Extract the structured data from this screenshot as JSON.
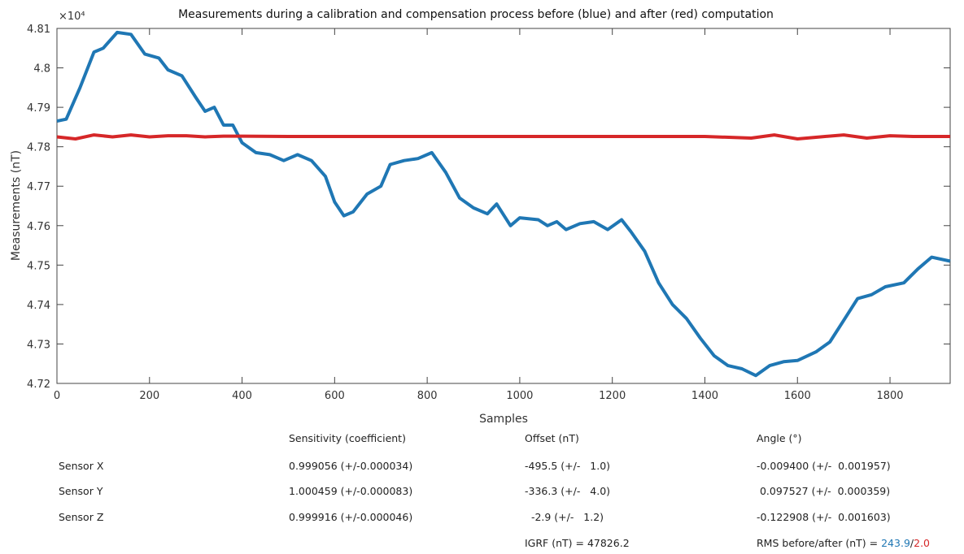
{
  "chart_data": {
    "type": "line",
    "title": "Measurements during a calibration and compensation process before (blue) and after (red) computation",
    "x_label": "Samples",
    "y_label": "Measurements (nT)",
    "y_multiplier": "×10⁴",
    "xlim": [
      0,
      1930
    ],
    "xticks": [
      0,
      200,
      400,
      600,
      800,
      1000,
      1200,
      1400,
      1600,
      1800
    ],
    "ylim": [
      4.72,
      4.81
    ],
    "yticks": [
      4.72,
      4.73,
      4.74,
      4.75,
      4.76,
      4.77,
      4.78,
      4.79,
      4.8,
      4.81
    ],
    "grid": false,
    "series": [
      {
        "color": "#1f77b4",
        "x": [
          0,
          20,
          50,
          80,
          100,
          130,
          160,
          190,
          220,
          240,
          270,
          300,
          320,
          340,
          360,
          380,
          400,
          430,
          460,
          490,
          520,
          550,
          580,
          600,
          620,
          640,
          670,
          700,
          720,
          750,
          780,
          810,
          840,
          870,
          900,
          930,
          950,
          980,
          1000,
          1040,
          1060,
          1080,
          1100,
          1130,
          1160,
          1190,
          1220,
          1240,
          1270,
          1300,
          1330,
          1360,
          1390,
          1420,
          1450,
          1480,
          1510,
          1540,
          1570,
          1600,
          1640,
          1670,
          1700,
          1730,
          1760,
          1790,
          1830,
          1860,
          1890,
          1930
        ],
        "values": [
          4.7865,
          4.787,
          4.795,
          4.804,
          4.805,
          4.809,
          4.8085,
          4.8035,
          4.8025,
          4.7995,
          4.798,
          4.7925,
          4.789,
          4.79,
          4.7855,
          4.7855,
          4.781,
          4.7785,
          4.778,
          4.7765,
          4.778,
          4.7765,
          4.7725,
          4.766,
          4.7625,
          4.7635,
          4.768,
          4.77,
          4.7755,
          4.7765,
          4.777,
          4.7785,
          4.7735,
          4.767,
          4.7645,
          4.763,
          4.7655,
          4.76,
          4.762,
          4.7615,
          4.76,
          4.761,
          4.759,
          4.7605,
          4.761,
          4.759,
          4.7615,
          4.7585,
          4.7535,
          4.7455,
          4.74,
          4.7365,
          4.7315,
          4.727,
          4.7245,
          4.7237,
          4.722,
          4.7245,
          4.7255,
          4.7258,
          4.728,
          4.7305,
          4.736,
          4.7415,
          4.7425,
          4.7445,
          4.7455,
          4.749,
          4.752,
          4.751
        ]
      },
      {
        "color": "#d62728",
        "x": [
          0,
          40,
          80,
          120,
          160,
          200,
          240,
          280,
          320,
          360,
          400,
          500,
          600,
          700,
          800,
          900,
          1000,
          1100,
          1200,
          1300,
          1400,
          1500,
          1550,
          1600,
          1650,
          1700,
          1750,
          1800,
          1850,
          1930
        ],
        "values": [
          4.7825,
          4.782,
          4.783,
          4.7825,
          4.783,
          4.7825,
          4.7828,
          4.7828,
          4.7825,
          4.7827,
          4.7827,
          4.7826,
          4.7826,
          4.7826,
          4.7826,
          4.7826,
          4.7826,
          4.7826,
          4.7826,
          4.7826,
          4.7826,
          4.7822,
          4.783,
          4.782,
          4.7825,
          4.783,
          4.7822,
          4.7828,
          4.7826,
          4.7826
        ]
      }
    ]
  },
  "table": {
    "header": [
      "Sensitivity (coefficient)",
      "Offset (nT)",
      "Angle (°)"
    ],
    "rows": [
      [
        "Sensor X",
        "0.999056 (+/-0.000034)",
        "-495.5 (+/-   1.0)",
        "-0.009400 (+/-  0.001957)"
      ],
      [
        "Sensor Y",
        "1.000459 (+/-0.000083)",
        "-336.3 (+/-   4.0)",
        " 0.097527 (+/-  0.000359)"
      ],
      [
        "Sensor Z",
        "0.999916 (+/-0.000046)",
        "  -2.9 (+/-   1.2)",
        "-0.122908 (+/-  0.001603)"
      ]
    ],
    "igrf": "IGRF (nT) = 47826.2",
    "rms_label": "RMS before/after (nT) = ",
    "rms_before": "243.9",
    "rms_sep": "/",
    "rms_after": "2.0"
  }
}
